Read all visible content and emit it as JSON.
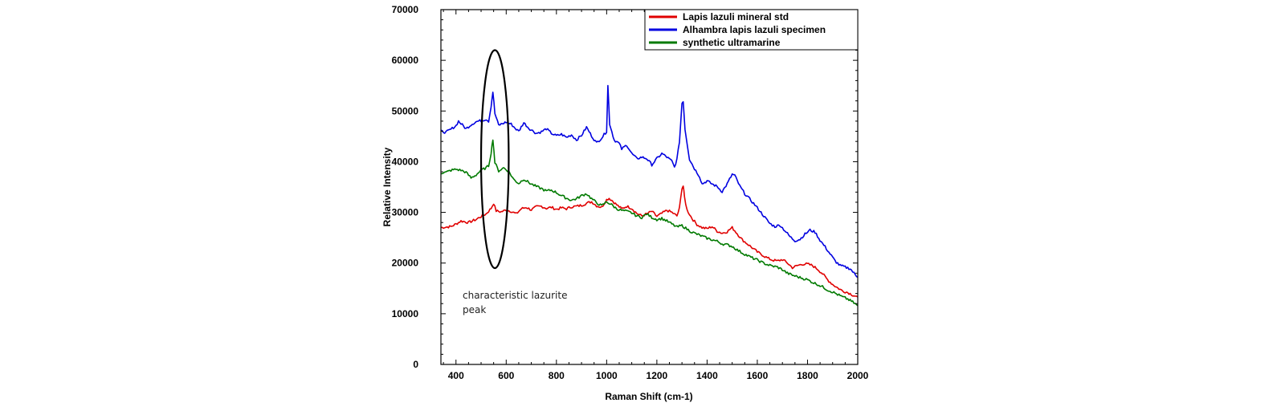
{
  "chart_data": {
    "type": "line",
    "xlabel": "Raman Shift (cm-1)",
    "ylabel": "Relative Intensity",
    "xlim": [
      340,
      2000
    ],
    "ylim": [
      0,
      70000
    ],
    "x_ticks": [
      400,
      600,
      800,
      1000,
      1200,
      1400,
      1600,
      1800,
      2000
    ],
    "y_ticks": [
      0,
      10000,
      20000,
      30000,
      40000,
      50000,
      60000,
      70000
    ],
    "grid": false,
    "legend_position": "top-right",
    "series": [
      {
        "name": "Lapis lazuli mineral std",
        "color": "#e00000",
        "points": [
          [
            340,
            27000
          ],
          [
            380,
            27200
          ],
          [
            400,
            27700
          ],
          [
            420,
            28300
          ],
          [
            450,
            28000
          ],
          [
            480,
            28600
          ],
          [
            500,
            29200
          ],
          [
            520,
            29700
          ],
          [
            540,
            30800
          ],
          [
            550,
            31800
          ],
          [
            560,
            30300
          ],
          [
            580,
            30100
          ],
          [
            600,
            30500
          ],
          [
            620,
            30200
          ],
          [
            640,
            29700
          ],
          [
            660,
            30700
          ],
          [
            680,
            31000
          ],
          [
            700,
            30500
          ],
          [
            720,
            31100
          ],
          [
            740,
            31200
          ],
          [
            760,
            30800
          ],
          [
            780,
            31000
          ],
          [
            800,
            30600
          ],
          [
            820,
            30900
          ],
          [
            840,
            30700
          ],
          [
            860,
            31100
          ],
          [
            880,
            31200
          ],
          [
            900,
            31400
          ],
          [
            920,
            31800
          ],
          [
            940,
            32100
          ],
          [
            960,
            31300
          ],
          [
            980,
            31000
          ],
          [
            1000,
            32500
          ],
          [
            1010,
            32800
          ],
          [
            1020,
            32400
          ],
          [
            1040,
            31500
          ],
          [
            1060,
            30700
          ],
          [
            1080,
            31200
          ],
          [
            1100,
            30800
          ],
          [
            1120,
            29800
          ],
          [
            1140,
            29300
          ],
          [
            1160,
            29700
          ],
          [
            1180,
            30200
          ],
          [
            1200,
            29200
          ],
          [
            1220,
            29800
          ],
          [
            1240,
            30400
          ],
          [
            1260,
            30000
          ],
          [
            1280,
            29300
          ],
          [
            1290,
            30800
          ],
          [
            1300,
            34800
          ],
          [
            1305,
            35200
          ],
          [
            1310,
            33000
          ],
          [
            1320,
            30500
          ],
          [
            1340,
            28800
          ],
          [
            1360,
            27600
          ],
          [
            1380,
            27000
          ],
          [
            1400,
            26800
          ],
          [
            1420,
            27200
          ],
          [
            1440,
            26300
          ],
          [
            1460,
            25900
          ],
          [
            1480,
            26200
          ],
          [
            1500,
            27000
          ],
          [
            1520,
            25800
          ],
          [
            1540,
            24600
          ],
          [
            1560,
            23800
          ],
          [
            1580,
            23000
          ],
          [
            1600,
            22200
          ],
          [
            1620,
            21600
          ],
          [
            1640,
            21000
          ],
          [
            1660,
            20600
          ],
          [
            1680,
            20400
          ],
          [
            1700,
            20700
          ],
          [
            1720,
            20000
          ],
          [
            1740,
            19100
          ],
          [
            1760,
            19500
          ],
          [
            1780,
            19800
          ],
          [
            1800,
            19800
          ],
          [
            1820,
            19500
          ],
          [
            1840,
            18800
          ],
          [
            1860,
            17900
          ],
          [
            1880,
            16700
          ],
          [
            1900,
            15800
          ],
          [
            1920,
            15100
          ],
          [
            1940,
            14500
          ],
          [
            1960,
            14200
          ],
          [
            1980,
            13700
          ],
          [
            2000,
            13300
          ]
        ]
      },
      {
        "name": "Alhambra lapis lazuli specimen",
        "color": "#0000e0",
        "points": [
          [
            340,
            46000
          ],
          [
            360,
            45800
          ],
          [
            380,
            46400
          ],
          [
            400,
            47100
          ],
          [
            410,
            48000
          ],
          [
            420,
            47500
          ],
          [
            440,
            46500
          ],
          [
            460,
            47300
          ],
          [
            480,
            47900
          ],
          [
            500,
            48100
          ],
          [
            520,
            48400
          ],
          [
            530,
            48000
          ],
          [
            540,
            51000
          ],
          [
            547,
            53800
          ],
          [
            555,
            49500
          ],
          [
            570,
            47200
          ],
          [
            600,
            47800
          ],
          [
            620,
            47400
          ],
          [
            640,
            46400
          ],
          [
            650,
            46000
          ],
          [
            670,
            47700
          ],
          [
            690,
            46600
          ],
          [
            720,
            45600
          ],
          [
            740,
            45900
          ],
          [
            760,
            46500
          ],
          [
            780,
            45600
          ],
          [
            800,
            45100
          ],
          [
            820,
            45400
          ],
          [
            840,
            44800
          ],
          [
            860,
            45300
          ],
          [
            880,
            44300
          ],
          [
            900,
            45200
          ],
          [
            920,
            46800
          ],
          [
            940,
            45100
          ],
          [
            960,
            43700
          ],
          [
            980,
            44700
          ],
          [
            1000,
            46000
          ],
          [
            1005,
            55000
          ],
          [
            1012,
            47500
          ],
          [
            1030,
            44300
          ],
          [
            1050,
            43600
          ],
          [
            1060,
            42500
          ],
          [
            1080,
            43300
          ],
          [
            1100,
            41600
          ],
          [
            1120,
            40600
          ],
          [
            1140,
            40900
          ],
          [
            1160,
            40600
          ],
          [
            1180,
            39400
          ],
          [
            1200,
            40600
          ],
          [
            1220,
            41600
          ],
          [
            1240,
            40900
          ],
          [
            1260,
            40100
          ],
          [
            1270,
            38900
          ],
          [
            1280,
            40500
          ],
          [
            1290,
            44000
          ],
          [
            1300,
            51500
          ],
          [
            1305,
            52000
          ],
          [
            1312,
            46500
          ],
          [
            1330,
            40500
          ],
          [
            1350,
            38600
          ],
          [
            1370,
            37100
          ],
          [
            1380,
            35600
          ],
          [
            1400,
            36200
          ],
          [
            1420,
            35600
          ],
          [
            1440,
            35100
          ],
          [
            1460,
            34100
          ],
          [
            1480,
            35600
          ],
          [
            1500,
            37500
          ],
          [
            1510,
            37300
          ],
          [
            1530,
            35200
          ],
          [
            1550,
            33700
          ],
          [
            1570,
            32600
          ],
          [
            1590,
            31500
          ],
          [
            1610,
            30300
          ],
          [
            1630,
            29000
          ],
          [
            1650,
            27800
          ],
          [
            1670,
            27200
          ],
          [
            1690,
            27500
          ],
          [
            1710,
            26400
          ],
          [
            1730,
            25200
          ],
          [
            1750,
            24400
          ],
          [
            1770,
            24700
          ],
          [
            1790,
            25700
          ],
          [
            1810,
            26500
          ],
          [
            1830,
            26100
          ],
          [
            1850,
            24500
          ],
          [
            1870,
            23200
          ],
          [
            1890,
            21800
          ],
          [
            1910,
            20400
          ],
          [
            1930,
            19500
          ],
          [
            1950,
            19200
          ],
          [
            1970,
            18900
          ],
          [
            1990,
            17700
          ],
          [
            2000,
            17200
          ]
        ]
      },
      {
        "name": "synthetic ultramarine",
        "color": "#007a00",
        "points": [
          [
            340,
            37800
          ],
          [
            360,
            37900
          ],
          [
            380,
            38300
          ],
          [
            400,
            38500
          ],
          [
            420,
            38300
          ],
          [
            440,
            37900
          ],
          [
            460,
            36800
          ],
          [
            480,
            37400
          ],
          [
            500,
            38300
          ],
          [
            520,
            38800
          ],
          [
            530,
            39200
          ],
          [
            540,
            41800
          ],
          [
            547,
            44500
          ],
          [
            555,
            39800
          ],
          [
            570,
            38200
          ],
          [
            590,
            38800
          ],
          [
            610,
            38100
          ],
          [
            630,
            36500
          ],
          [
            650,
            35700
          ],
          [
            670,
            36600
          ],
          [
            680,
            36200
          ],
          [
            700,
            35600
          ],
          [
            720,
            35100
          ],
          [
            740,
            34700
          ],
          [
            760,
            34200
          ],
          [
            780,
            34400
          ],
          [
            800,
            33900
          ],
          [
            820,
            33300
          ],
          [
            840,
            32800
          ],
          [
            860,
            32400
          ],
          [
            880,
            32700
          ],
          [
            900,
            33300
          ],
          [
            920,
            33700
          ],
          [
            940,
            32700
          ],
          [
            960,
            31900
          ],
          [
            980,
            31300
          ],
          [
            1000,
            32100
          ],
          [
            1020,
            31500
          ],
          [
            1040,
            30700
          ],
          [
            1060,
            30400
          ],
          [
            1080,
            30200
          ],
          [
            1100,
            29900
          ],
          [
            1120,
            29300
          ],
          [
            1140,
            29000
          ],
          [
            1160,
            29700
          ],
          [
            1180,
            29000
          ],
          [
            1200,
            28600
          ],
          [
            1220,
            28800
          ],
          [
            1240,
            28300
          ],
          [
            1260,
            27700
          ],
          [
            1280,
            27100
          ],
          [
            1300,
            27400
          ],
          [
            1320,
            26700
          ],
          [
            1340,
            26100
          ],
          [
            1360,
            25700
          ],
          [
            1380,
            25300
          ],
          [
            1400,
            24900
          ],
          [
            1420,
            24600
          ],
          [
            1440,
            24300
          ],
          [
            1460,
            23800
          ],
          [
            1480,
            23600
          ],
          [
            1500,
            23300
          ],
          [
            1520,
            22600
          ],
          [
            1540,
            22000
          ],
          [
            1560,
            21500
          ],
          [
            1580,
            21000
          ],
          [
            1600,
            20600
          ],
          [
            1620,
            20100
          ],
          [
            1640,
            19700
          ],
          [
            1660,
            19400
          ],
          [
            1680,
            19200
          ],
          [
            1700,
            18700
          ],
          [
            1720,
            18000
          ],
          [
            1740,
            17600
          ],
          [
            1760,
            17300
          ],
          [
            1780,
            17000
          ],
          [
            1800,
            16700
          ],
          [
            1820,
            16200
          ],
          [
            1840,
            15800
          ],
          [
            1860,
            15300
          ],
          [
            1880,
            14700
          ],
          [
            1900,
            14300
          ],
          [
            1920,
            13800
          ],
          [
            1940,
            13300
          ],
          [
            1960,
            12900
          ],
          [
            1980,
            12300
          ],
          [
            2000,
            11600
          ]
        ]
      }
    ],
    "annotations": [
      {
        "id": "lazurite-peak-ellipse",
        "shape": "ellipse",
        "center": [
          555,
          40500
        ],
        "radius_x": 55,
        "radius_y": 21500,
        "lines": [
          "characteristic lazurite",
          "peak"
        ]
      }
    ]
  }
}
